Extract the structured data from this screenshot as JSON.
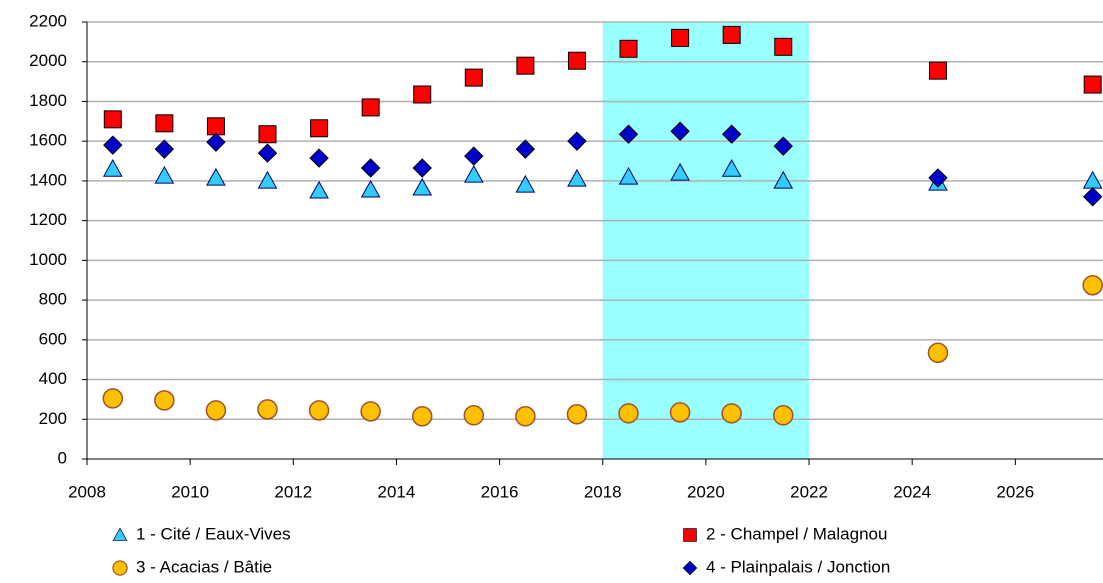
{
  "chart_data": {
    "type": "scatter",
    "x": [
      2008.5,
      2009.5,
      2010.5,
      2011.5,
      2012.5,
      2013.5,
      2014.5,
      2015.5,
      2016.5,
      2017.5,
      2018.5,
      2019.5,
      2020.5,
      2021.5,
      2024.5,
      2027.5
    ],
    "series": [
      {
        "name": "1 - Cité / Eaux-Vives",
        "color": "#33ccff",
        "marker": "triangle",
        "values": [
          1460,
          1425,
          1415,
          1400,
          1350,
          1355,
          1365,
          1430,
          1380,
          1410,
          1420,
          1440,
          1460,
          1400,
          1390,
          1400
        ]
      },
      {
        "name": "2 - Champel / Malagnou",
        "color": "#ff0000",
        "marker": "square",
        "values": [
          1710,
          1690,
          1675,
          1635,
          1665,
          1770,
          1835,
          1920,
          1980,
          2005,
          2065,
          2120,
          2135,
          2075,
          1955,
          1885
        ]
      },
      {
        "name": "3 - Acacias / Bâtie",
        "color": "#ffc000",
        "marker": "circle",
        "values": [
          305,
          295,
          245,
          250,
          245,
          240,
          215,
          220,
          215,
          225,
          230,
          235,
          230,
          220,
          535,
          875
        ]
      },
      {
        "name": "4 - Plainpalais / Jonction",
        "color": "#0000cc",
        "marker": "diamond",
        "values": [
          1580,
          1560,
          1595,
          1540,
          1515,
          1465,
          1465,
          1525,
          1560,
          1600,
          1635,
          1650,
          1635,
          1575,
          1415,
          1320
        ]
      }
    ],
    "xlim": [
      2008,
      2027.7
    ],
    "xticks": [
      2008,
      2010,
      2012,
      2014,
      2016,
      2018,
      2020,
      2022,
      2024,
      2026
    ],
    "ylim": [
      0,
      2200
    ],
    "yticks": [
      0,
      200,
      400,
      600,
      800,
      1000,
      1200,
      1400,
      1600,
      1800,
      2000,
      2200
    ],
    "grid": true,
    "highlight": [
      2018,
      2022
    ],
    "highlight_color": "#99ffff"
  }
}
